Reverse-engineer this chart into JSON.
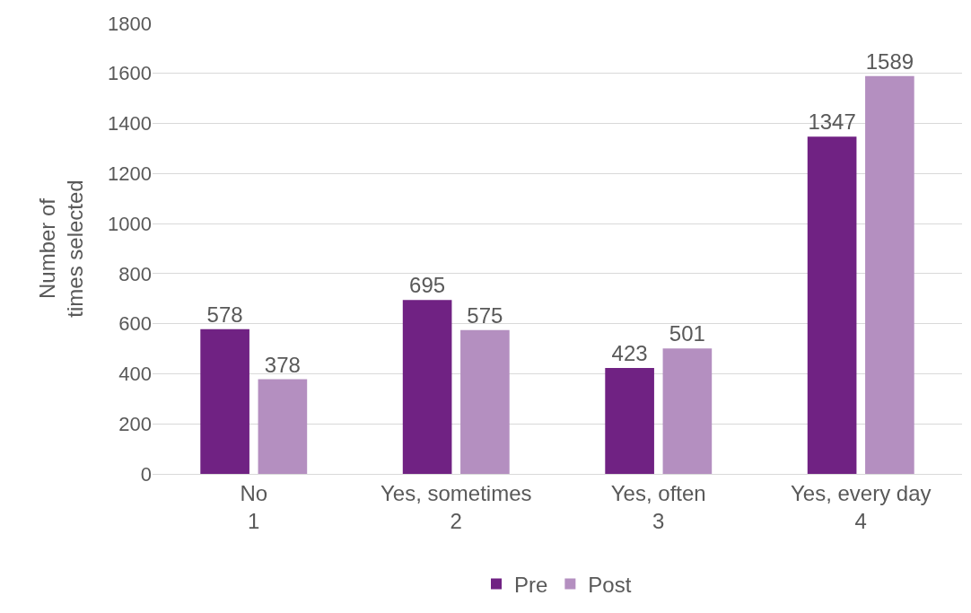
{
  "chart_data": {
    "type": "bar",
    "ylabel": "Number of\ntimes selected",
    "categories": [
      "No\n1",
      "Yes, sometimes\n2",
      "Yes, often\n3",
      "Yes, every day\n4"
    ],
    "series": [
      {
        "name": "Pre",
        "color": "#702283",
        "values": [
          578,
          695,
          423,
          1347
        ]
      },
      {
        "name": "Post",
        "color": "#b48fc0",
        "values": [
          378,
          575,
          501,
          1589
        ]
      }
    ],
    "ylim": [
      0,
      1800
    ],
    "yticks": [
      0,
      200,
      400,
      600,
      800,
      1000,
      1200,
      1400,
      1600,
      1800
    ],
    "grid": "y",
    "legend": "bottom",
    "data_labels": true
  }
}
